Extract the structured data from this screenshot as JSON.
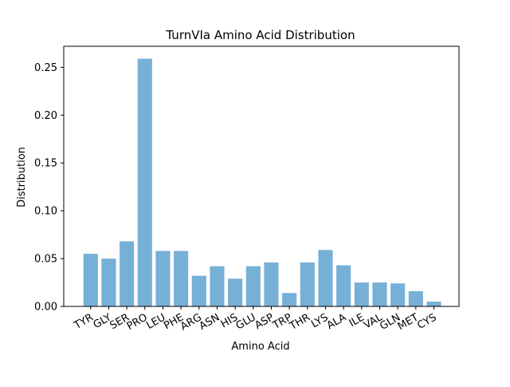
{
  "chart_data": {
    "type": "bar",
    "title": "TurnVIa Amino Acid Distribution",
    "xlabel": "Amino Acid",
    "ylabel": "Distribution",
    "categories": [
      "TYR",
      "GLY",
      "SER",
      "PRO",
      "LEU",
      "PHE",
      "ARG",
      "ASN",
      "HIS",
      "GLU",
      "ASP",
      "TRP",
      "THR",
      "LYS",
      "ALA",
      "ILE",
      "VAL",
      "GLN",
      "MET",
      "CYS"
    ],
    "values": [
      0.055,
      0.05,
      0.068,
      0.259,
      0.058,
      0.058,
      0.032,
      0.042,
      0.029,
      0.042,
      0.046,
      0.014,
      0.046,
      0.059,
      0.043,
      0.025,
      0.025,
      0.024,
      0.016,
      0.005
    ],
    "ylim": [
      0,
      0.272
    ],
    "yticks": [
      "0.00",
      "0.05",
      "0.10",
      "0.15",
      "0.20",
      "0.25"
    ],
    "grid": false,
    "colors": {
      "bar": "#77b0d6",
      "axis": "#000000"
    }
  }
}
